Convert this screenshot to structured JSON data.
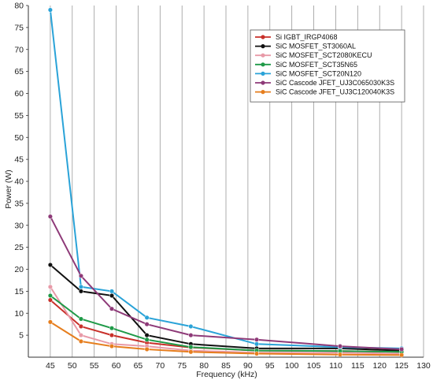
{
  "chart_data": {
    "type": "line",
    "title": "",
    "xlabel": "Frequency (kHz)",
    "ylabel": "Power (W)",
    "xlim": [
      40,
      130
    ],
    "ylim": [
      0,
      80
    ],
    "x_ticks": [
      "45",
      "50",
      "55",
      "60",
      "65",
      "70",
      "75",
      "80",
      "85",
      "90",
      "95",
      "100",
      "105",
      "110",
      "115",
      "120",
      "125",
      "130"
    ],
    "y_ticks": [
      "5",
      "10",
      "15",
      "20",
      "25",
      "30",
      "35",
      "40",
      "45",
      "50",
      "55",
      "60",
      "65",
      "70",
      "75",
      "80"
    ],
    "grid": {
      "vertical": true,
      "horizontal": false
    },
    "legend_position": "top-right",
    "x": [
      45,
      52,
      59,
      67,
      77,
      92,
      111,
      125
    ],
    "series": [
      {
        "name": "Si IGBT_IRGP4068",
        "color": "#c8302a",
        "values": [
          13,
          7,
          5,
          3.3,
          2.2,
          1.5,
          1.4,
          1.2
        ]
      },
      {
        "name": "SiC MOSFET_ST3060AL",
        "color": "#111111",
        "values": [
          21,
          15,
          14,
          5,
          3,
          2,
          2,
          1.5
        ]
      },
      {
        "name": "SiC MOSFET_SCT2080KECU",
        "color": "#e89aa8",
        "values": [
          16,
          5,
          3,
          2.5,
          1.5,
          1,
          1,
          0.8
        ]
      },
      {
        "name": "SiC MOSFET_SCT35N65",
        "color": "#1f9a48",
        "values": [
          14,
          8.7,
          6.6,
          4,
          2.3,
          1.5,
          1.4,
          1.2
        ]
      },
      {
        "name": "SiC MOSFET_SCT20N120",
        "color": "#2aa3d8",
        "values": [
          79,
          16,
          15,
          9,
          7,
          3,
          2.3,
          2
        ]
      },
      {
        "name": "SiC Cascode JFET_UJ3C065030K3S",
        "color": "#8e3a78",
        "values": [
          32,
          18.5,
          11,
          7.5,
          5,
          4,
          2.5,
          1.8
        ]
      },
      {
        "name": "SiC Cascode JFET_UJ3C120040K3S",
        "color": "#e67e1e",
        "values": [
          8,
          3.6,
          2.5,
          1.8,
          1.2,
          0.8,
          0.6,
          0.5
        ]
      }
    ]
  }
}
